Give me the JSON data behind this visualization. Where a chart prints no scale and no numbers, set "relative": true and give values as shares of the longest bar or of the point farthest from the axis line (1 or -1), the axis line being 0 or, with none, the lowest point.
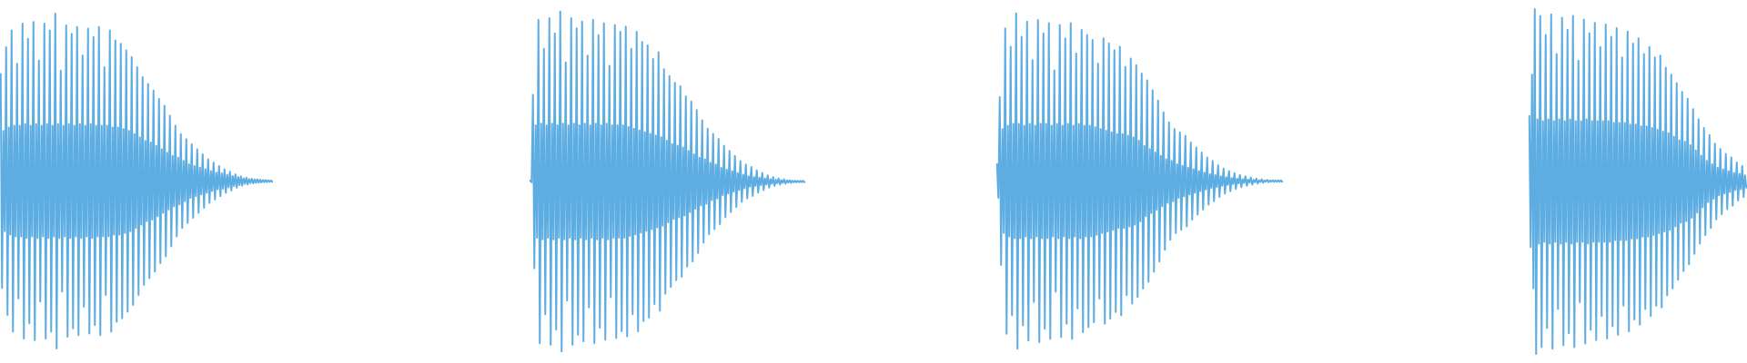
{
  "chart_data": [
    {
      "type": "line",
      "relative": true,
      "color": "#5dade2",
      "categories": [
        null,
        null,
        null,
        null,
        null,
        null,
        null,
        null,
        null,
        null,
        null,
        null,
        null,
        null,
        null,
        null,
        null,
        null,
        null,
        null,
        null,
        null,
        null,
        null,
        null,
        null,
        null,
        null,
        null,
        null,
        null,
        null,
        null,
        null,
        null,
        null,
        null,
        null,
        null,
        null,
        null,
        null,
        null,
        null,
        null,
        null,
        null,
        null,
        null,
        null,
        null,
        null,
        null,
        null,
        null,
        null,
        null,
        null,
        null,
        null,
        null,
        null,
        null,
        null,
        null,
        null,
        null,
        null,
        null,
        null,
        null,
        null,
        null,
        null,
        null,
        null,
        null,
        null,
        null,
        null,
        null,
        null,
        null,
        null,
        null,
        null,
        null,
        null,
        null,
        null,
        null,
        null,
        null,
        null,
        null,
        null,
        null,
        null,
        null,
        null,
        null,
        null,
        null,
        null,
        null,
        null,
        null,
        null,
        null,
        null,
        null,
        null,
        null,
        null,
        null,
        null,
        null,
        null,
        null,
        null,
        null,
        null,
        null,
        null,
        null,
        null,
        null,
        null,
        null,
        null,
        null,
        null,
        null,
        null,
        null,
        null,
        null,
        null,
        null,
        null,
        null,
        null,
        null,
        null,
        null,
        null,
        null,
        null,
        null,
        null,
        null,
        null,
        null,
        null,
        null,
        null,
        null,
        null,
        null,
        null,
        null,
        null,
        null,
        null,
        null,
        null,
        null,
        null,
        null,
        null,
        null,
        null,
        null,
        null,
        null,
        null,
        null,
        null,
        null,
        null,
        null,
        null,
        null,
        null,
        null,
        null,
        null,
        null,
        null,
        null,
        null,
        null,
        null,
        null,
        null,
        null,
        null,
        null,
        null,
        null
      ],
      "values": [
        0.82,
        0.18,
        0.65,
        0.35,
        0.9,
        0.1,
        0.66,
        0.34,
        0.95,
        0.05,
        0.665,
        0.335,
        0.85,
        0.15,
        0.665,
        0.335,
        0.97,
        0.03,
        0.67,
        0.33,
        0.925,
        0.075,
        0.665,
        0.335,
        0.975,
        0.025,
        0.67,
        0.33,
        0.86,
        0.14,
        0.665,
        0.335,
        0.97,
        0.03,
        0.67,
        0.33,
        0.95,
        0.05,
        0.665,
        0.335,
        1,
        0,
        0.67,
        0.33,
        0.83,
        0.17,
        0.665,
        0.335,
        0.965,
        0.035,
        0.67,
        0.33,
        0.94,
        0.06,
        0.665,
        0.335,
        0.96,
        0.04,
        0.67,
        0.33,
        0.875,
        0.125,
        0.665,
        0.335,
        0.955,
        0.045,
        0.67,
        0.33,
        0.93,
        0.07,
        0.665,
        0.335,
        0.96,
        0.04,
        0.665,
        0.335,
        0.84,
        0.16,
        0.665,
        0.335,
        0.95,
        0.05,
        0.66,
        0.34,
        0.92,
        0.08,
        0.66,
        0.34,
        0.91,
        0.09,
        0.655,
        0.345,
        0.89,
        0.11,
        0.65,
        0.35,
        0.87,
        0.13,
        0.64,
        0.36,
        0.84,
        0.16,
        0.63,
        0.37,
        0.81,
        0.19,
        0.62,
        0.38,
        0.79,
        0.21,
        0.615,
        0.385,
        0.77,
        0.23,
        0.605,
        0.395,
        0.745,
        0.255,
        0.595,
        0.405,
        0.725,
        0.275,
        0.585,
        0.415,
        0.695,
        0.305,
        0.575,
        0.425,
        0.665,
        0.335,
        0.57,
        0.43,
        0.64,
        0.36,
        0.56,
        0.44,
        0.625,
        0.375,
        0.55,
        0.45,
        0.61,
        0.39,
        0.545,
        0.455,
        0.595,
        0.405,
        0.54,
        0.46,
        0.58,
        0.42,
        0.535,
        0.465,
        0.565,
        0.435,
        0.53,
        0.47,
        0.555,
        0.445,
        0.525,
        0.475,
        0.545,
        0.455,
        0.523,
        0.477,
        0.535,
        0.465,
        0.519,
        0.481,
        0.528,
        0.472,
        0.515,
        0.485,
        0.52,
        0.48,
        0.512,
        0.488,
        0.514,
        0.486,
        0.508,
        0.492,
        0.51,
        0.49,
        0.506,
        0.494,
        0.507,
        0.493,
        0.505,
        0.495,
        0.505,
        0.495,
        0.504,
        0.496,
        0.503,
        0.497,
        0.503,
        0.497,
        0.5025,
        0.4975,
        0.502,
        0.498
      ]
    },
    {
      "type": "line",
      "relative": true,
      "color": "#5dade2",
      "categories": [
        null,
        null,
        null,
        null,
        null,
        null,
        null,
        null,
        null,
        null,
        null,
        null,
        null,
        null,
        null,
        null,
        null,
        null,
        null,
        null,
        null,
        null,
        null,
        null,
        null,
        null,
        null,
        null,
        null,
        null,
        null,
        null,
        null,
        null,
        null,
        null,
        null,
        null,
        null,
        null,
        null,
        null,
        null,
        null,
        null,
        null,
        null,
        null,
        null,
        null,
        null,
        null,
        null,
        null,
        null,
        null,
        null,
        null,
        null,
        null,
        null,
        null,
        null,
        null,
        null,
        null,
        null,
        null,
        null,
        null,
        null,
        null,
        null,
        null,
        null,
        null,
        null,
        null,
        null,
        null,
        null,
        null,
        null,
        null,
        null,
        null,
        null,
        null,
        null,
        null,
        null,
        null,
        null,
        null,
        null,
        null,
        null,
        null,
        null,
        null,
        null,
        null,
        null,
        null,
        null,
        null,
        null,
        null,
        null,
        null,
        null,
        null,
        null,
        null,
        null,
        null,
        null,
        null,
        null,
        null,
        null,
        null,
        null,
        null,
        null,
        null,
        null,
        null,
        null,
        null,
        null,
        null,
        null,
        null,
        null,
        null,
        null,
        null,
        null,
        null,
        null,
        null,
        null,
        null,
        null,
        null,
        null,
        null,
        null,
        null,
        null,
        null,
        null,
        null,
        null,
        null,
        null,
        null,
        null,
        null,
        null,
        null,
        null,
        null,
        null,
        null,
        null,
        null,
        null,
        null,
        null,
        null,
        null,
        null,
        null,
        null,
        null,
        null,
        null,
        null,
        null,
        null,
        null,
        null,
        null,
        null,
        null,
        null,
        null,
        null,
        null,
        null,
        null,
        null,
        null,
        null,
        null,
        null,
        null,
        null,
        null,
        null
      ],
      "values": [
        0.5025,
        0.4975,
        0.755,
        0.245,
        0.665,
        0.335,
        0.975,
        0.025,
        0.67,
        0.33,
        0.89,
        0.11,
        0.665,
        0.335,
        0.98,
        0.02,
        0.67,
        0.33,
        0.935,
        0.065,
        0.665,
        0.335,
        1,
        0,
        0.67,
        0.33,
        0.85,
        0.15,
        0.665,
        0.335,
        0.98,
        0.02,
        0.67,
        0.33,
        0.95,
        0.05,
        0.665,
        0.335,
        0.97,
        0.03,
        0.67,
        0.33,
        0.87,
        0.13,
        0.665,
        0.335,
        0.975,
        0.025,
        0.67,
        0.33,
        0.93,
        0.07,
        0.665,
        0.335,
        0.965,
        0.035,
        0.67,
        0.33,
        0.84,
        0.16,
        0.665,
        0.335,
        0.96,
        0.04,
        0.665,
        0.335,
        0.94,
        0.06,
        0.665,
        0.335,
        0.955,
        0.045,
        0.66,
        0.34,
        0.89,
        0.11,
        0.655,
        0.345,
        0.94,
        0.06,
        0.65,
        0.35,
        0.91,
        0.09,
        0.645,
        0.355,
        0.9,
        0.1,
        0.64,
        0.36,
        0.86,
        0.14,
        0.635,
        0.365,
        0.88,
        0.12,
        0.63,
        0.37,
        0.83,
        0.17,
        0.62,
        0.38,
        0.81,
        0.19,
        0.61,
        0.39,
        0.79,
        0.21,
        0.605,
        0.395,
        0.78,
        0.22,
        0.6,
        0.4,
        0.75,
        0.25,
        0.59,
        0.41,
        0.735,
        0.265,
        0.58,
        0.42,
        0.71,
        0.29,
        0.57,
        0.43,
        0.68,
        0.32,
        0.565,
        0.435,
        0.655,
        0.345,
        0.555,
        0.445,
        0.64,
        0.36,
        0.55,
        0.45,
        0.625,
        0.375,
        0.54,
        0.46,
        0.605,
        0.395,
        0.535,
        0.465,
        0.59,
        0.41,
        0.53,
        0.47,
        0.575,
        0.425,
        0.525,
        0.475,
        0.56,
        0.44,
        0.52,
        0.48,
        0.55,
        0.45,
        0.515,
        0.485,
        0.5425,
        0.4575,
        0.513,
        0.487,
        0.5325,
        0.4675,
        0.511,
        0.489,
        0.525,
        0.475,
        0.509,
        0.491,
        0.518,
        0.482,
        0.507,
        0.493,
        0.513,
        0.487,
        0.505,
        0.495,
        0.509,
        0.491,
        0.504,
        0.496,
        0.5065,
        0.4935,
        0.503,
        0.497,
        0.504,
        0.496,
        0.5025,
        0.4975,
        0.5025,
        0.4975,
        0.502,
        0.498,
        0.502,
        0.498,
        0.502,
        0.498
      ]
    },
    {
      "type": "line",
      "relative": true,
      "color": "#5dade2",
      "categories": [
        null,
        null,
        null,
        null,
        null,
        null,
        null,
        null,
        null,
        null,
        null,
        null,
        null,
        null,
        null,
        null,
        null,
        null,
        null,
        null,
        null,
        null,
        null,
        null,
        null,
        null,
        null,
        null,
        null,
        null,
        null,
        null,
        null,
        null,
        null,
        null,
        null,
        null,
        null,
        null,
        null,
        null,
        null,
        null,
        null,
        null,
        null,
        null,
        null,
        null,
        null,
        null,
        null,
        null,
        null,
        null,
        null,
        null,
        null,
        null,
        null,
        null,
        null,
        null,
        null,
        null,
        null,
        null,
        null,
        null,
        null,
        null,
        null,
        null,
        null,
        null,
        null,
        null,
        null,
        null,
        null,
        null,
        null,
        null,
        null,
        null,
        null,
        null,
        null,
        null,
        null,
        null,
        null,
        null,
        null,
        null,
        null,
        null,
        null,
        null,
        null,
        null,
        null,
        null,
        null,
        null,
        null,
        null,
        null,
        null,
        null,
        null,
        null,
        null,
        null,
        null,
        null,
        null,
        null,
        null,
        null,
        null,
        null,
        null,
        null,
        null,
        null,
        null,
        null,
        null,
        null,
        null,
        null,
        null,
        null,
        null,
        null,
        null,
        null,
        null,
        null,
        null,
        null,
        null,
        null,
        null,
        null,
        null,
        null,
        null,
        null,
        null,
        null,
        null,
        null,
        null,
        null,
        null,
        null,
        null,
        null,
        null,
        null,
        null,
        null,
        null,
        null,
        null,
        null,
        null,
        null,
        null,
        null,
        null,
        null,
        null,
        null,
        null,
        null,
        null,
        null,
        null,
        null,
        null,
        null,
        null,
        null,
        null,
        null,
        null,
        null,
        null,
        null,
        null,
        null,
        null,
        null,
        null,
        null,
        null,
        null,
        null,
        null,
        null,
        null,
        null,
        null,
        null,
        null,
        null
      ],
      "values": [
        0.55,
        0.45,
        0.75,
        0.25,
        0.655,
        0.345,
        0.955,
        0.045,
        0.665,
        0.335,
        0.9,
        0.1,
        0.67,
        0.33,
        1,
        0,
        0.67,
        0.33,
        0.93,
        0.07,
        0.665,
        0.335,
        0.975,
        0.025,
        0.67,
        0.33,
        0.86,
        0.14,
        0.665,
        0.335,
        0.98,
        0.02,
        0.67,
        0.33,
        0.94,
        0.06,
        0.67,
        0.33,
        0.97,
        0.03,
        0.665,
        0.335,
        0.83,
        0.17,
        0.67,
        0.33,
        0.965,
        0.035,
        0.665,
        0.335,
        0.925,
        0.075,
        0.67,
        0.33,
        0.97,
        0.03,
        0.665,
        0.335,
        0.88,
        0.12,
        0.67,
        0.33,
        0.95,
        0.05,
        0.665,
        0.335,
        0.935,
        0.065,
        0.665,
        0.335,
        0.92,
        0.08,
        0.66,
        0.34,
        0.85,
        0.15,
        0.655,
        0.345,
        0.925,
        0.075,
        0.65,
        0.35,
        0.91,
        0.09,
        0.645,
        0.355,
        0.89,
        0.11,
        0.64,
        0.36,
        0.9,
        0.1,
        0.64,
        0.36,
        0.84,
        0.16,
        0.635,
        0.365,
        0.865,
        0.135,
        0.63,
        0.37,
        0.845,
        0.155,
        0.62,
        0.38,
        0.82,
        0.18,
        0.605,
        0.395,
        0.8,
        0.2,
        0.595,
        0.405,
        0.77,
        0.23,
        0.585,
        0.415,
        0.74,
        0.26,
        0.575,
        0.425,
        0.705,
        0.295,
        0.565,
        0.435,
        0.675,
        0.325,
        0.56,
        0.44,
        0.655,
        0.345,
        0.55,
        0.45,
        0.645,
        0.355,
        0.545,
        0.455,
        0.635,
        0.365,
        0.54,
        0.46,
        0.615,
        0.385,
        0.535,
        0.465,
        0.6,
        0.4,
        0.53,
        0.47,
        0.585,
        0.415,
        0.525,
        0.475,
        0.57,
        0.43,
        0.52,
        0.48,
        0.56,
        0.44,
        0.5175,
        0.4825,
        0.5475,
        0.4525,
        0.514,
        0.486,
        0.537,
        0.463,
        0.5115,
        0.4885,
        0.53,
        0.47,
        0.509,
        0.491,
        0.5235,
        0.4765,
        0.507,
        0.493,
        0.518,
        0.482,
        0.5055,
        0.4945,
        0.514,
        0.486,
        0.5045,
        0.4955,
        0.5105,
        0.4895,
        0.5035,
        0.4965,
        0.5075,
        0.4925,
        0.5025,
        0.4975,
        0.505,
        0.495,
        0.502,
        0.498,
        0.5035,
        0.4965,
        0.502,
        0.498,
        0.5025,
        0.4975,
        0.502,
        0.498,
        0.502,
        0.498,
        0.502,
        0.498
      ]
    },
    {
      "type": "line",
      "relative": true,
      "color": "#5dade2",
      "categories": [
        null,
        null,
        null,
        null,
        null,
        null,
        null,
        null,
        null,
        null,
        null,
        null,
        null,
        null,
        null,
        null,
        null,
        null,
        null,
        null,
        null,
        null,
        null,
        null,
        null,
        null,
        null,
        null,
        null,
        null,
        null,
        null,
        null,
        null,
        null,
        null,
        null,
        null,
        null,
        null,
        null,
        null,
        null,
        null,
        null,
        null,
        null,
        null,
        null,
        null,
        null,
        null,
        null,
        null,
        null,
        null,
        null,
        null,
        null,
        null,
        null,
        null,
        null,
        null,
        null,
        null,
        null,
        null,
        null,
        null,
        null,
        null,
        null,
        null,
        null,
        null,
        null,
        null,
        null,
        null,
        null,
        null,
        null,
        null,
        null,
        null,
        null,
        null,
        null,
        null,
        null,
        null,
        null,
        null,
        null,
        null,
        null,
        null,
        null,
        null,
        null,
        null,
        null,
        null,
        null,
        null,
        null,
        null,
        null,
        null,
        null,
        null,
        null,
        null,
        null,
        null,
        null,
        null,
        null,
        null,
        null,
        null,
        null,
        null,
        null,
        null,
        null,
        null,
        null,
        null,
        null,
        null,
        null,
        null,
        null,
        null,
        null,
        null,
        null,
        null,
        null,
        null,
        null,
        null,
        null,
        null,
        null,
        null,
        null,
        null,
        null,
        null,
        null,
        null,
        null,
        null,
        null,
        null,
        null,
        null
      ],
      "values": [
        0.69,
        0.31,
        0.81,
        0.19,
        1,
        0,
        0.68,
        0.32,
        0.98,
        0.02,
        0.675,
        0.325,
        0.925,
        0.075,
        0.68,
        0.32,
        0.985,
        0.015,
        0.675,
        0.325,
        0.87,
        0.13,
        0.68,
        0.32,
        0.975,
        0.025,
        0.675,
        0.325,
        0.94,
        0.06,
        0.68,
        0.32,
        0.98,
        0.02,
        0.675,
        0.325,
        0.85,
        0.15,
        0.675,
        0.325,
        0.97,
        0.03,
        0.68,
        0.32,
        0.93,
        0.07,
        0.675,
        0.325,
        0.96,
        0.04,
        0.675,
        0.325,
        0.89,
        0.11,
        0.675,
        0.325,
        0.955,
        0.045,
        0.675,
        0.325,
        0.92,
        0.08,
        0.67,
        0.33,
        0.945,
        0.055,
        0.67,
        0.33,
        0.86,
        0.14,
        0.67,
        0.33,
        0.935,
        0.065,
        0.665,
        0.335,
        0.9,
        0.1,
        0.665,
        0.335,
        0.915,
        0.085,
        0.66,
        0.34,
        0.87,
        0.13,
        0.66,
        0.34,
        0.89,
        0.11,
        0.655,
        0.345,
        0.86,
        0.14,
        0.65,
        0.35,
        0.865,
        0.135,
        0.645,
        0.355,
        0.83,
        0.17,
        0.64,
        0.36,
        0.81,
        0.19,
        0.63,
        0.37,
        0.785,
        0.215,
        0.62,
        0.38,
        0.76,
        0.24,
        0.615,
        0.385,
        0.74,
        0.26,
        0.605,
        0.395,
        0.71,
        0.29,
        0.59,
        0.41,
        0.68,
        0.32,
        0.575,
        0.425,
        0.655,
        0.345,
        0.56,
        0.44,
        0.635,
        0.365,
        0.55,
        0.45,
        0.61,
        0.39,
        0.54,
        0.46,
        0.595,
        0.405,
        0.535,
        0.465,
        0.58,
        0.42,
        0.53,
        0.47,
        0.57,
        0.43,
        0.525,
        0.475,
        0.555,
        0.445,
        0.5225,
        0.4775,
        0.545,
        0.455,
        0.5175,
        0.4825
      ]
    }
  ]
}
